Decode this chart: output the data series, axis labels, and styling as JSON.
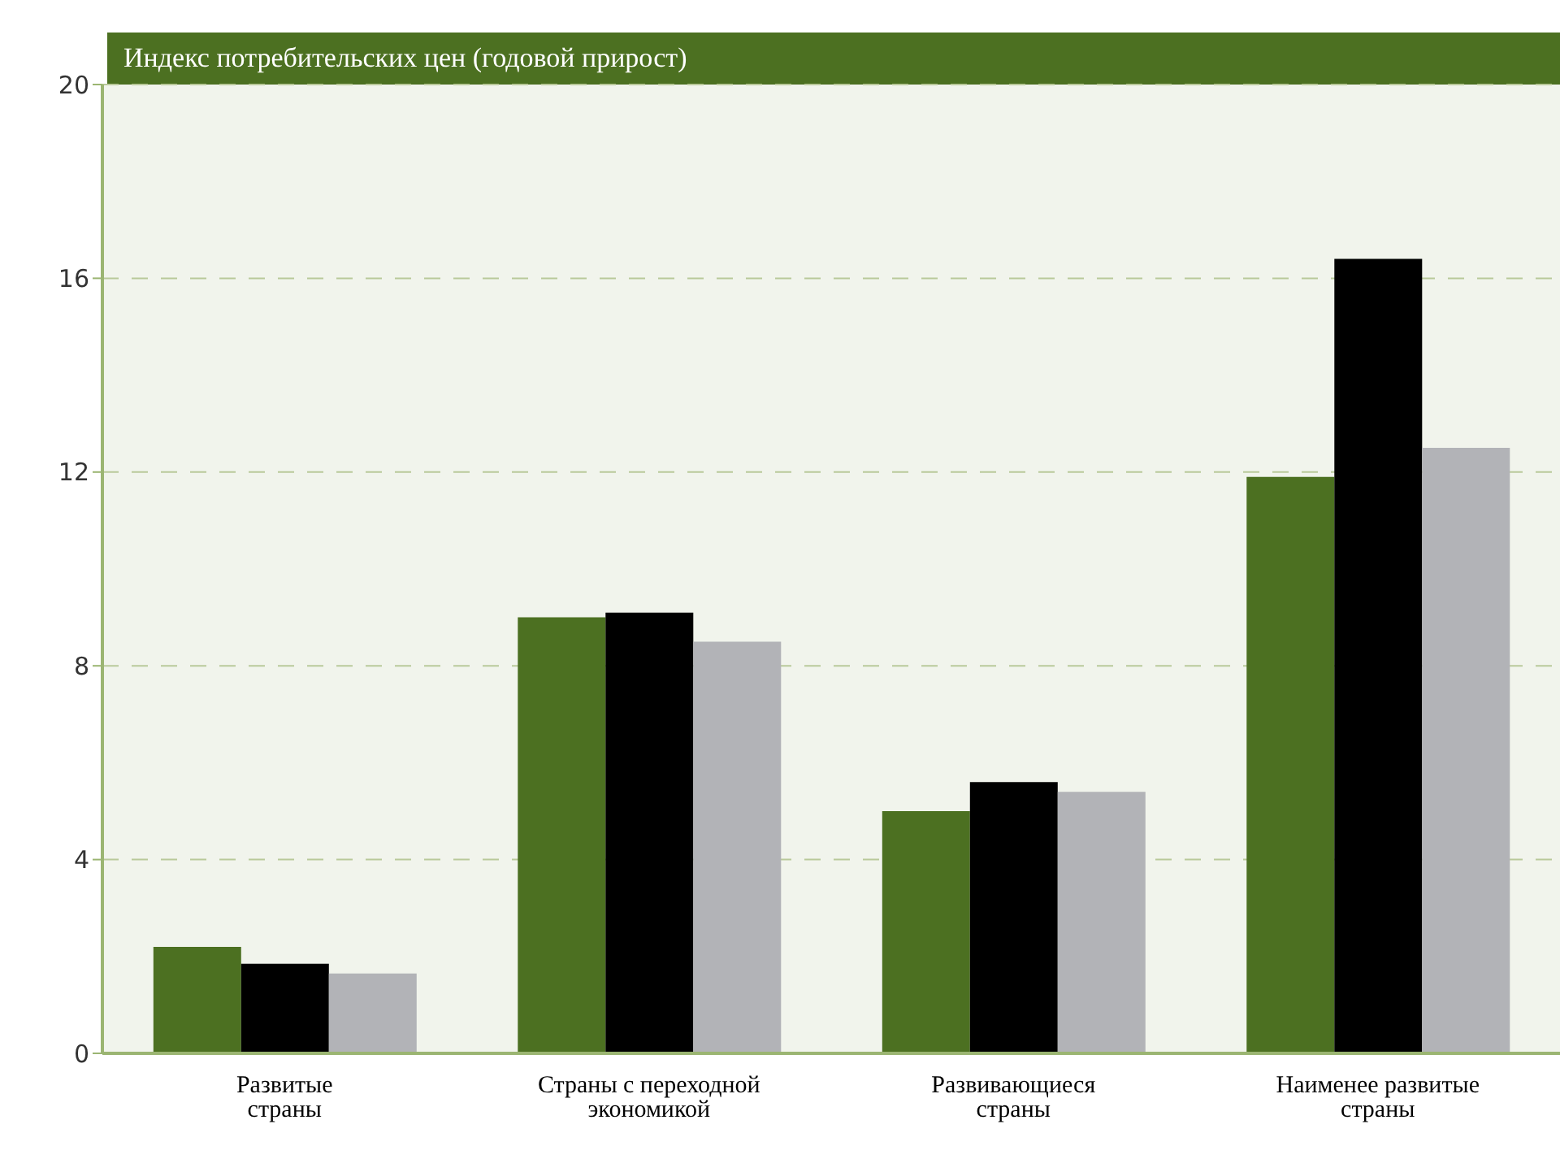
{
  "chart_data": {
    "type": "bar",
    "title": "Индекс потребительских цен (годовой прирост)",
    "categories": [
      "Развитые страны",
      "Страны с переходной экономикой",
      "Развивающиеся страны",
      "Наименее развитые страны"
    ],
    "series": [
      {
        "color": "#4c7021",
        "values": [
          2.2,
          9.0,
          5.0,
          11.9
        ]
      },
      {
        "color": "#000000",
        "values": [
          1.85,
          9.1,
          5.6,
          16.4
        ]
      },
      {
        "color": "#b2b3b7",
        "values": [
          1.65,
          8.5,
          5.4,
          12.5
        ]
      }
    ],
    "ylim": [
      0,
      20
    ],
    "yticks": [
      0,
      4,
      8,
      12,
      16,
      20
    ],
    "grid": "y",
    "legend": false
  }
}
